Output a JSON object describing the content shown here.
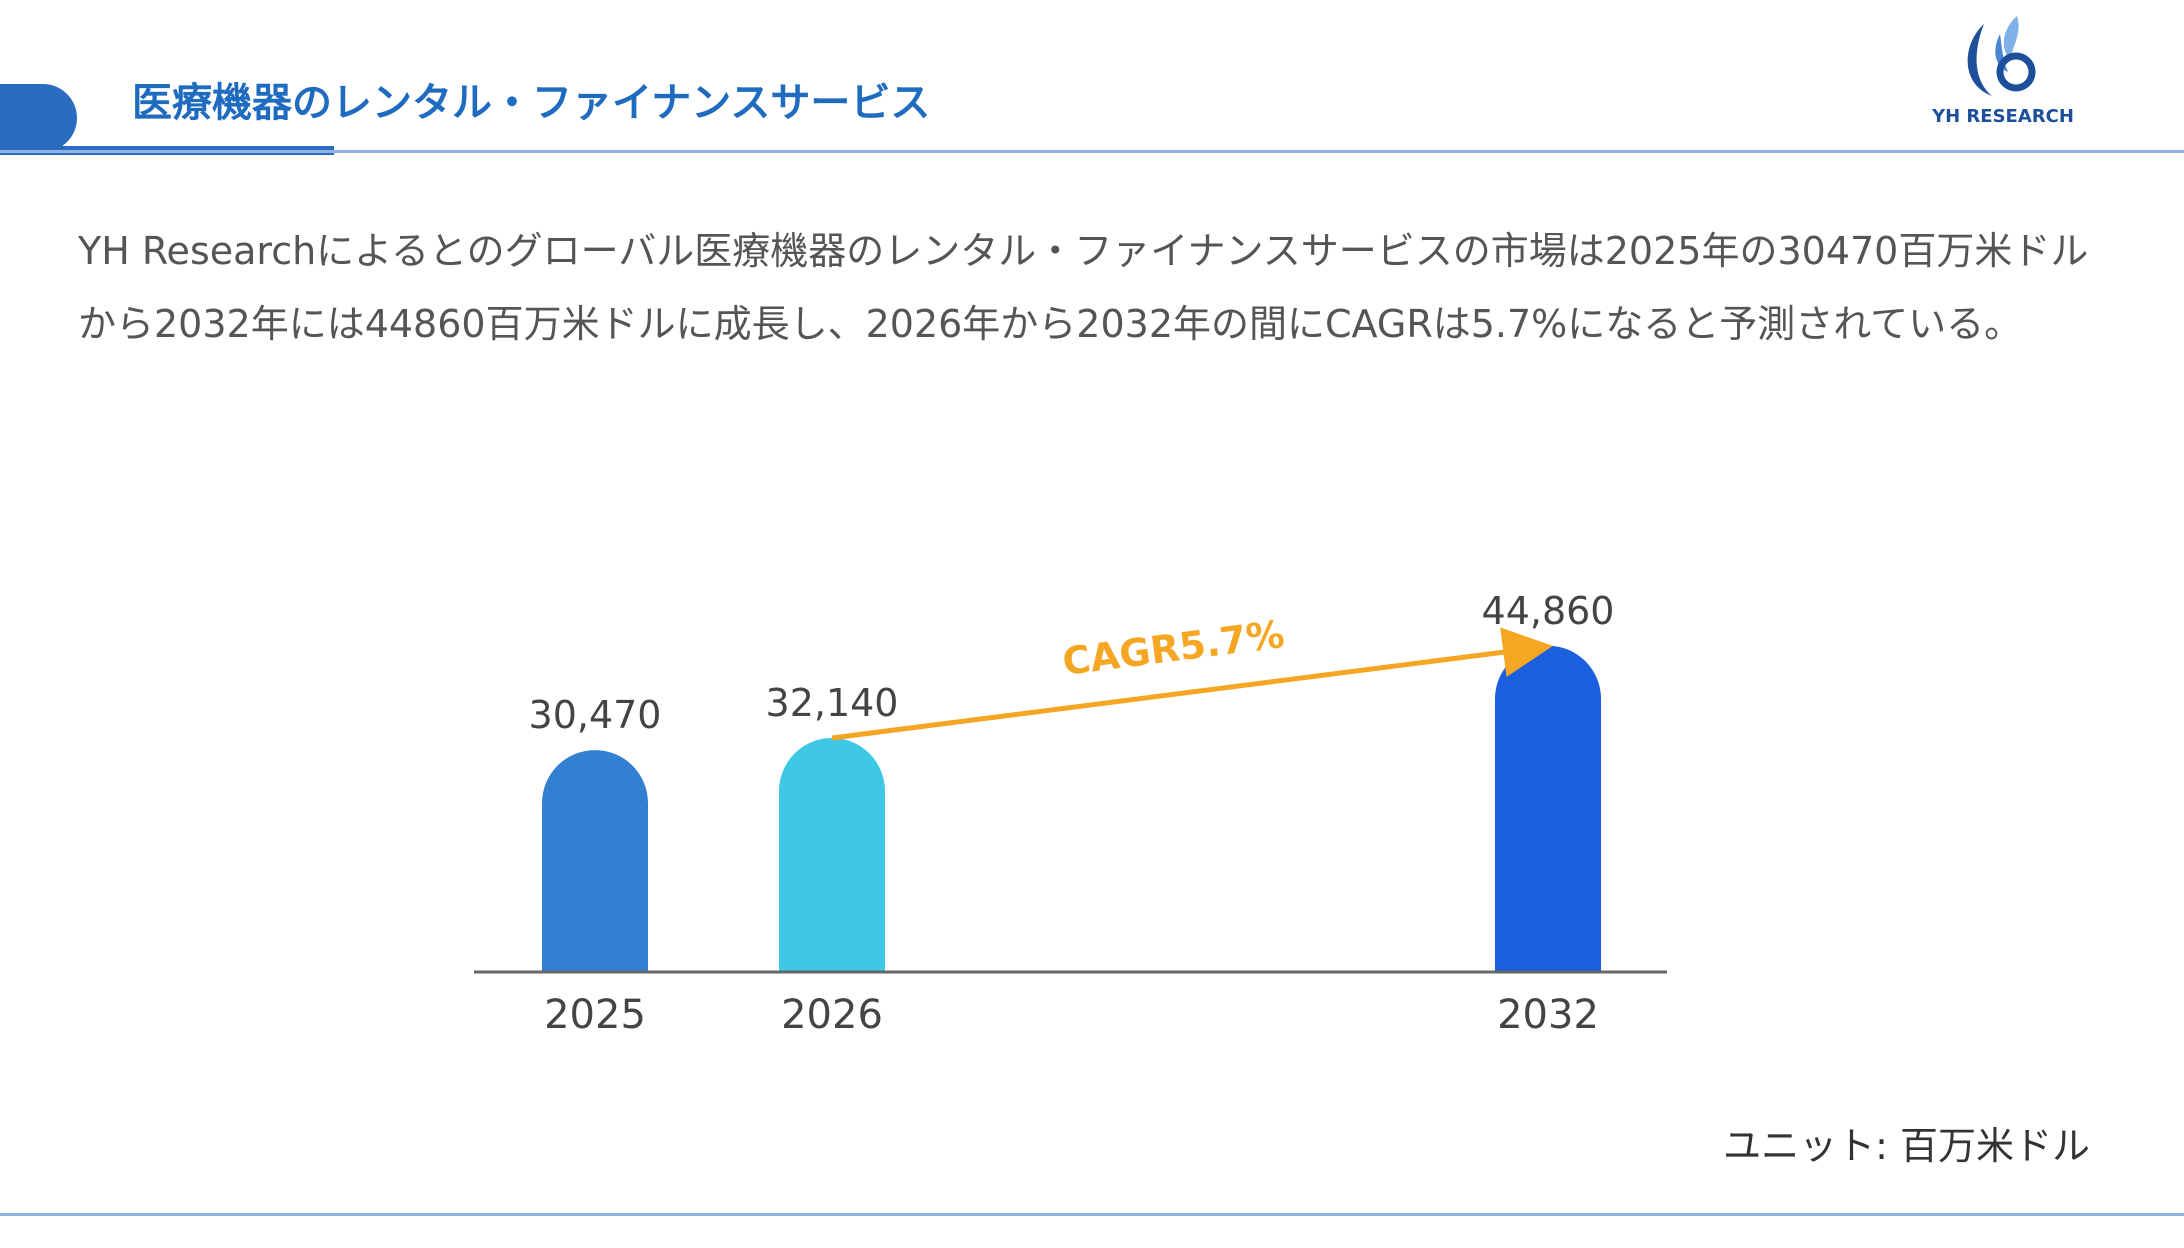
{
  "header": {
    "title": "医療機器のレンタル・ファイナンスサービス",
    "logo_text": "YH RESEARCH",
    "accent": "#2a6cc0"
  },
  "description": "YH Researchによるとのグローバル医療機器のレンタル・ファイナンスサービスの市場は2025年の30470百万米ドルから2032年には44860百万米ドルに成長し、2026年から2032年の間にCAGRは5.7%になると予測されている。",
  "unit_label": "ユニット: 百万米ドル",
  "chart_data": {
    "type": "bar",
    "categories": [
      "2025",
      "2026",
      "2032"
    ],
    "values": [
      30470,
      32140,
      44860
    ],
    "value_labels": [
      "30,470",
      "32,140",
      "44,860"
    ],
    "colors": [
      "#3380d3",
      "#3ec8e6",
      "#1a5fdd"
    ],
    "annotation": {
      "text": "CAGR5.7%",
      "from": "2026",
      "to": "2032",
      "color": "#f5a623"
    },
    "title": "",
    "xlabel": "",
    "ylabel": "",
    "grid": false
  }
}
